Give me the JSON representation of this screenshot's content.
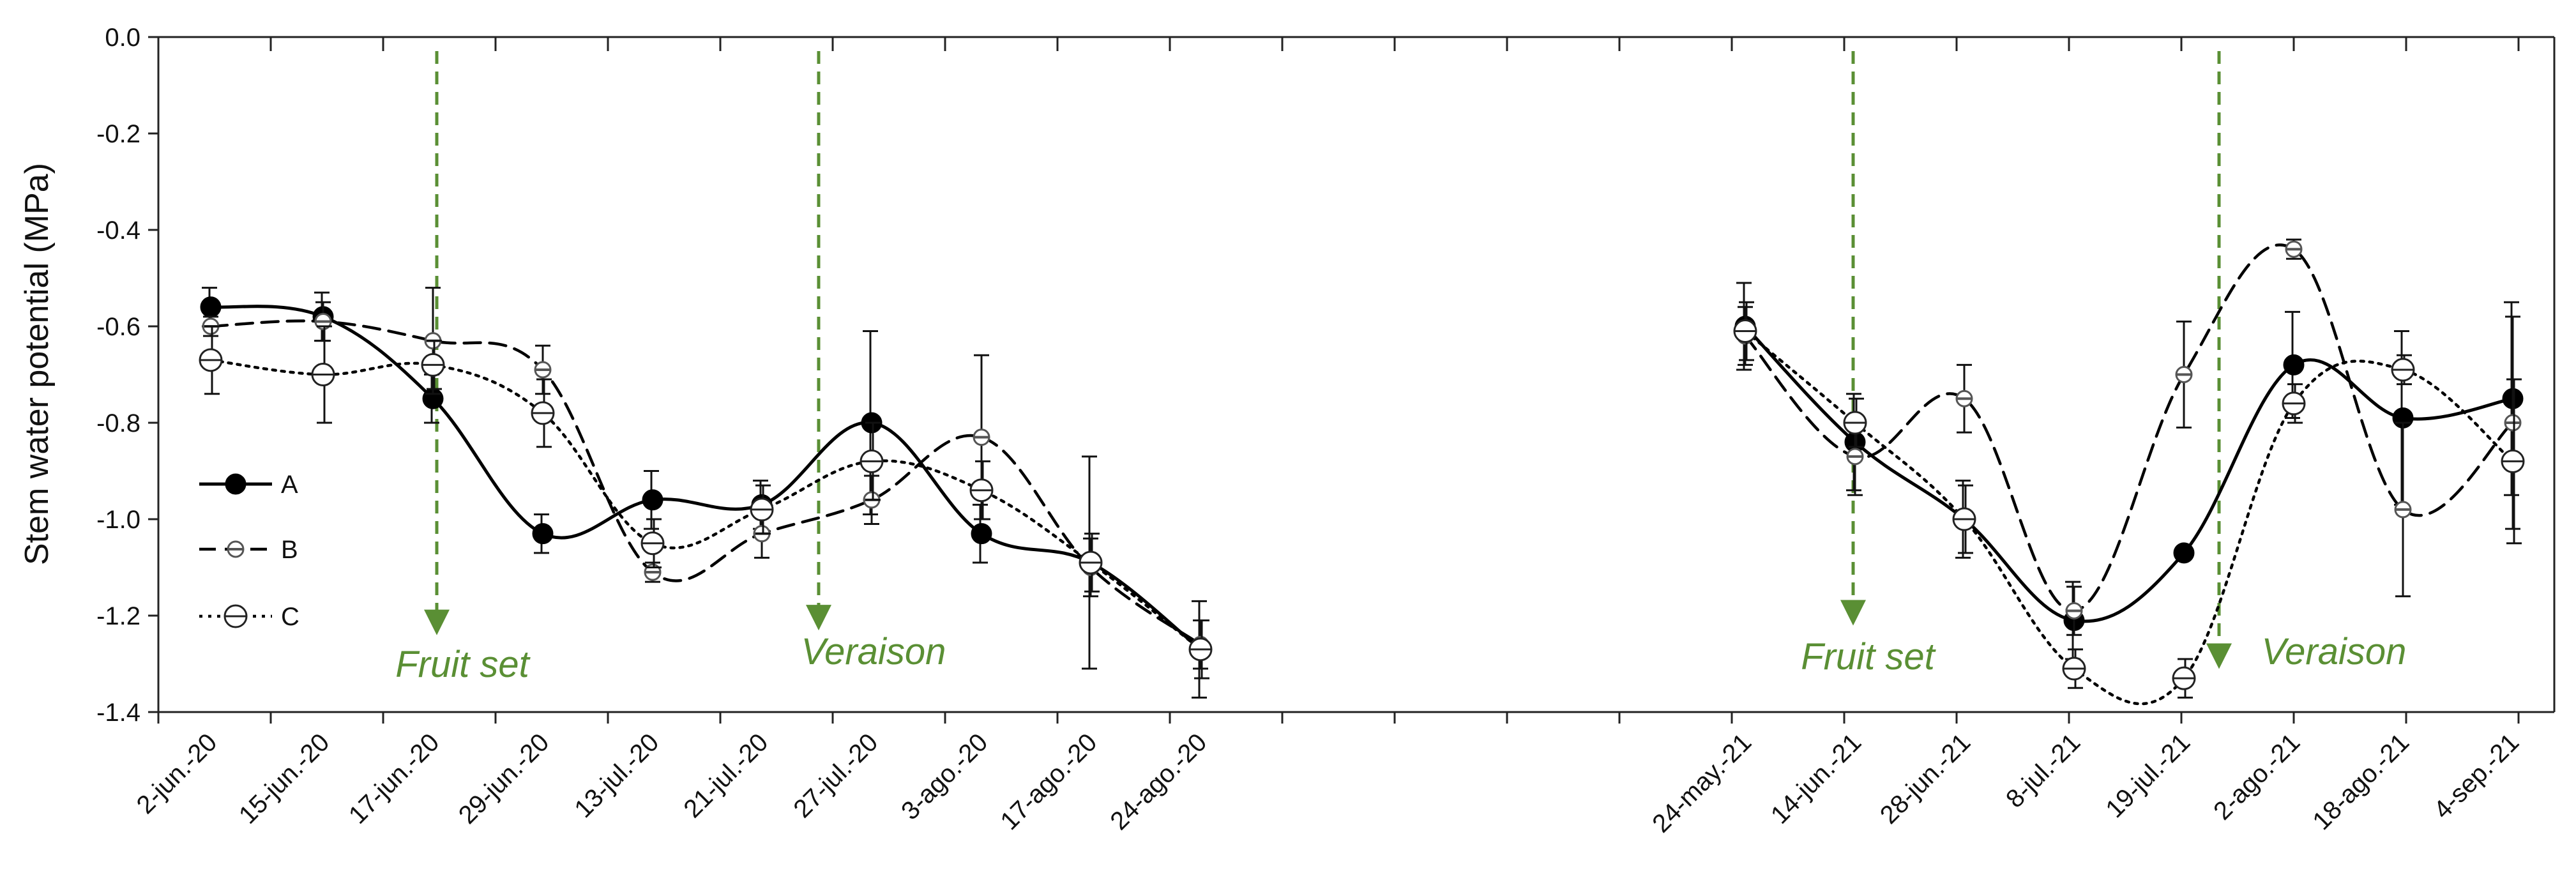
{
  "chart_data": {
    "type": "line",
    "ylabel": "Stem water potential (MPa)",
    "xlabel": "",
    "ylim": [
      -1.4,
      0.0
    ],
    "yticks": [
      "0.0",
      "-0.2",
      "-0.4",
      "-0.6",
      "-0.8",
      "-1.0",
      "-1.2",
      "-1.4"
    ],
    "grid": false,
    "legend_position": "left",
    "categories": [
      "2-jun.-20",
      "15-jun.-20",
      "17-jun.-20",
      "29-jun.-20",
      "13-jul.-20",
      "21-jul.-20",
      "27-jul.-20",
      "3-ago.-20",
      "17-ago.-20",
      "24-ago.-20",
      "24-may.-21",
      "14-jun.-21",
      "28-jun.-21",
      "8-jul.-21",
      "19-jul.-21",
      "2-ago.-21",
      "18-ago.-21",
      "4-sep.-21"
    ],
    "series": [
      {
        "name": "A",
        "color": "#000000",
        "line_style": "solid",
        "marker": "filled-circle",
        "values": [
          -0.56,
          -0.58,
          -0.75,
          -1.03,
          -0.96,
          -0.97,
          -0.8,
          -1.03,
          -1.09,
          -1.27,
          -0.6,
          -0.84,
          -1.0,
          -1.21,
          -1.07,
          -0.68,
          -0.79,
          -0.75
        ],
        "errors": [
          0.04,
          0.05,
          0.05,
          0.04,
          0.06,
          0.05,
          0.19,
          0.06,
          0.22,
          0.1,
          0.09,
          0.1,
          0.08,
          0.08,
          0.0,
          0.11,
          0.18,
          0.2
        ]
      },
      {
        "name": "B",
        "color": "#000000",
        "line_style": "dashed",
        "marker": "half-circle",
        "values": [
          -0.6,
          -0.59,
          -0.63,
          -0.69,
          -1.11,
          -1.03,
          -0.96,
          -0.83,
          -1.1,
          -1.26,
          -0.62,
          -0.87,
          -0.75,
          -1.19,
          -0.7,
          -0.44,
          -0.98,
          -0.8
        ],
        "errors": [
          0.02,
          0.04,
          0.11,
          0.05,
          0.02,
          0.05,
          0.05,
          0.17,
          0.06,
          0.05,
          0.06,
          0.08,
          0.07,
          0.05,
          0.11,
          0.02,
          0.18,
          0.22
        ]
      },
      {
        "name": "C",
        "color": "#000000",
        "line_style": "dotted",
        "marker": "open-circle",
        "values": [
          -0.67,
          -0.7,
          -0.68,
          -0.78,
          -1.05,
          -0.98,
          -0.88,
          -0.94,
          -1.09,
          -1.27,
          -0.61,
          -0.8,
          -1.0,
          -1.31,
          -1.33,
          -0.76,
          -0.69,
          -0.88
        ],
        "errors": [
          0.07,
          0.1,
          0.05,
          0.07,
          0.05,
          0.05,
          0.08,
          0.06,
          0.06,
          0.06,
          0.06,
          0.05,
          0.07,
          0.04,
          0.04,
          0.04,
          0.03,
          0.17
        ]
      }
    ],
    "annotations": [
      {
        "text": "Fruit set",
        "color": "#5a8f34",
        "arrow_from": 0.0,
        "arrow_to": -1.23
      },
      {
        "text": "Veraison",
        "color": "#5a8f34",
        "arrow_from": 0.0,
        "arrow_to": -1.22
      },
      {
        "text": "Fruit set",
        "color": "#5a8f34",
        "arrow_from": 0.0,
        "arrow_to": -1.21
      },
      {
        "text": "Veraison",
        "color": "#5a8f34",
        "arrow_from": 0.0,
        "arrow_to": -1.3
      }
    ]
  }
}
